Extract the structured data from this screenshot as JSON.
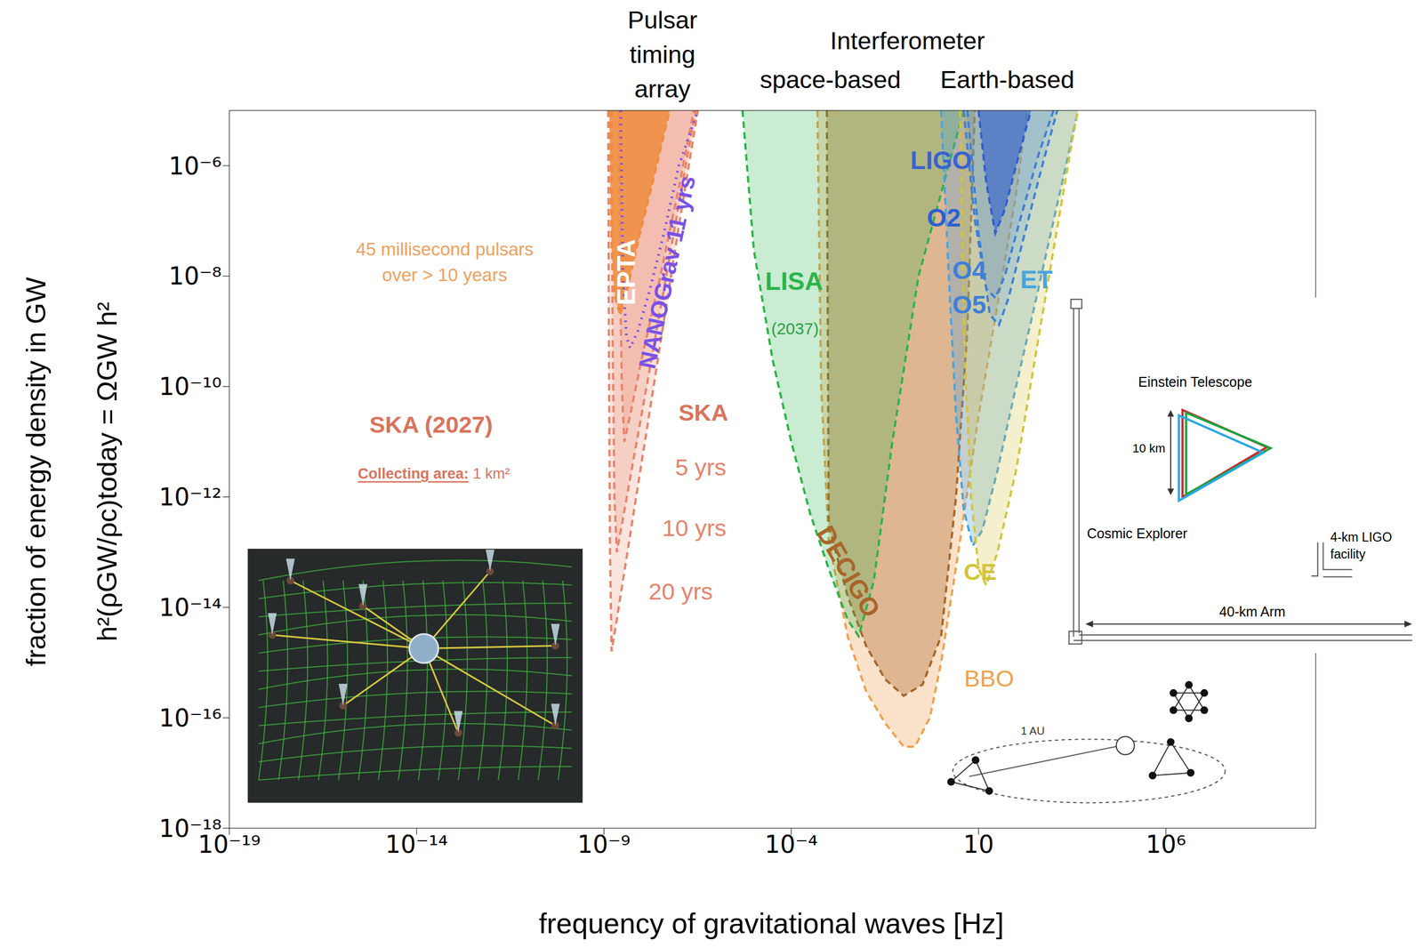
{
  "chart_data": {
    "type": "area",
    "x_label": "frequency of gravitational waves [Hz]",
    "y_label": [
      "fraction of energy density in GW",
      "h²(ρGW/ρc)today = ΩGW h²"
    ],
    "log": true,
    "grid": false,
    "xlim": [
      1e-19,
      10000000000.0
    ],
    "xticks": [
      {
        "value": 1e-19,
        "label": "10⁻¹⁹"
      },
      {
        "value": 1e-14,
        "label": "10⁻¹⁴"
      },
      {
        "value": 1e-09,
        "label": "10⁻⁹"
      },
      {
        "value": 0.0001,
        "label": "10⁻⁴"
      },
      10,
      {
        "value": 1000000,
        "label": "10⁶"
      }
    ],
    "ylim": [
      1e-18,
      1e-05
    ],
    "yticks": [
      {
        "value": 1e-18,
        "label": "10⁻¹⁸"
      },
      {
        "value": 1e-16,
        "label": "10⁻¹⁶"
      },
      {
        "value": 1e-14,
        "label": "10⁻¹⁴"
      },
      {
        "value": 1e-12,
        "label": "10⁻¹²"
      },
      {
        "value": 1e-10,
        "label": "10⁻¹⁰"
      },
      {
        "value": 1e-08,
        "label": "10⁻⁸"
      },
      {
        "value": 1e-06,
        "label": "10⁻⁶"
      }
    ],
    "headers": [
      "Pulsar timing array",
      "Interferometer",
      "space-based",
      "Earth-based"
    ],
    "series": [
      {
        "name": "BBO",
        "type": "area",
        "color": "#f0a050",
        "line_style": "dashed",
        "x": [
          0.0005,
          0.00063,
          0.001,
          0.0032,
          0.01,
          0.032,
          0.1,
          0.2,
          0.5,
          1,
          3.2,
          10,
          32,
          100,
          200
        ],
        "values": [
          1e-05,
          1e-10,
          1.6e-13,
          3e-15,
          3e-16,
          8e-17,
          3e-17,
          3e-17,
          1e-16,
          1e-15,
          1.6e-13,
          3e-11,
          3e-09,
          3e-07,
          1e-05
        ]
      },
      {
        "name": "DECIGO",
        "type": "area",
        "color": "#a8662a",
        "line_style": "dashed",
        "x": [
          0.00089,
          0.001,
          0.0032,
          0.01,
          0.032,
          0.1,
          0.32,
          1,
          2.5,
          5,
          7.9
        ],
        "values": [
          1e-05,
          3e-13,
          1.6e-14,
          2e-15,
          5e-16,
          2.5e-16,
          4e-16,
          3e-15,
          1e-12,
          1e-09,
          1e-05
        ]
      },
      {
        "name": "LISA",
        "type": "area",
        "color": "#2db34a",
        "line_style": "dashed",
        "x": [
          5e-06,
          1e-05,
          3.2e-05,
          0.0001,
          0.00032,
          0.001,
          0.0032,
          0.0063,
          0.016,
          0.05,
          0.25,
          4
        ],
        "values": [
          1e-05,
          3e-08,
          3e-10,
          1e-11,
          5e-13,
          5e-14,
          6e-15,
          3e-15,
          3e-14,
          1e-11,
          1e-08,
          1e-05
        ]
      },
      {
        "name": "ET",
        "type": "area",
        "color": "#4aa3df",
        "line_style": "dashed",
        "x": [
          1,
          1.6,
          2.5,
          4,
          7,
          12.6,
          32,
          100,
          316,
          1000,
          2500,
          4500
        ],
        "values": [
          1e-05,
          1e-08,
          3e-11,
          6e-13,
          1.3e-13,
          2.5e-13,
          3e-12,
          1e-10,
          3e-09,
          1e-07,
          1.6e-06,
          1e-05
        ]
      },
      {
        "name": "CE",
        "type": "area",
        "color": "#d4c43a",
        "line_style": "dashed",
        "x": [
          3.2,
          4,
          6.3,
          10,
          16,
          32,
          100,
          316,
          1000,
          3200,
          4500
        ],
        "values": [
          1e-05,
          1e-09,
          1e-12,
          5e-14,
          2.5e-14,
          1e-13,
          3e-12,
          3e-10,
          3e-08,
          3e-06,
          1e-05
        ]
      },
      {
        "name": "O4",
        "type": "area",
        "color": "#3f7fd6",
        "line_style": "dashed",
        "x": [
          4,
          8,
          16,
          28,
          50,
          126,
          400,
          1000
        ],
        "values": [
          1e-05,
          1e-07,
          6e-09,
          4e-09,
          1e-08,
          1e-07,
          1.6e-06,
          1e-05
        ]
      },
      {
        "name": "O5",
        "type": "area",
        "color": "#3f7fd6",
        "line_style": "dashed",
        "x": [
          5,
          10,
          20,
          35,
          63,
          160,
          500,
          1260
        ],
        "values": [
          1e-05,
          6e-08,
          2e-09,
          1.3e-09,
          4e-09,
          5e-08,
          1e-06,
          1e-05
        ]
      },
      {
        "name": "O2",
        "type": "area",
        "color": "#2f5fcf",
        "line_style": "dashed",
        "x": [
          10,
          16,
          28,
          50,
          100,
          250
        ],
        "values": [
          1e-05,
          5e-07,
          6e-08,
          1.6e-07,
          1e-06,
          1e-05
        ]
      },
      {
        "name": "20 yrs",
        "type": "area",
        "color": "#e8836a",
        "line_style": "dashed",
        "x": [
          1.3e-09,
          1.35e-09,
          1.45e-09,
          1.6e-09,
          2.2e-09,
          3.2e-09,
          1e-08,
          3.2e-08,
          1e-07,
          3.2e-07
        ],
        "values": [
          1e-05,
          1e-09,
          1e-13,
          1.6e-15,
          6e-15,
          3e-14,
          4e-12,
          6e-10,
          8e-08,
          1e-05
        ]
      },
      {
        "name": "10 yrs",
        "type": "area",
        "color": "#e8836a",
        "line_style": "dashed",
        "x": [
          1.6e-09,
          1.7e-09,
          1.9e-09,
          2.2e-09,
          3.2e-09,
          1e-08,
          3.2e-08,
          1e-07,
          2.8e-07
        ],
        "values": [
          1e-05,
          1e-09,
          1e-12,
          1e-13,
          4e-13,
          3e-11,
          2.5e-09,
          2e-07,
          1e-05
        ]
      },
      {
        "name": "5 yrs",
        "type": "area",
        "color": "#e8836a",
        "line_style": "dashed",
        "x": [
          2.5e-09,
          2.7e-09,
          3e-09,
          3.5e-09,
          5e-09,
          1e-08,
          3.2e-08,
          1e-07,
          2.5e-07
        ],
        "values": [
          1e-05,
          1e-08,
          1e-10,
          1e-11,
          3e-11,
          3e-10,
          1e-08,
          4e-07,
          1e-05
        ]
      },
      {
        "name": "EPTA",
        "type": "area",
        "color": "#ef8c3d",
        "line_style": "dashed",
        "x": [
          1.4e-09,
          1.6e-09,
          2e-09,
          2.7e-09,
          4e-09,
          8e-09,
          2e-08,
          5.7e-08
        ],
        "values": [
          1e-05,
          3e-08,
          4e-09,
          2e-09,
          5e-09,
          4e-08,
          5e-07,
          1e-05
        ]
      },
      {
        "name": "NANOGrav 11 yrs",
        "type": "line",
        "color": "#7a52e6",
        "line_style": "dotted",
        "x": [
          2.8e-09,
          3.2e-09,
          4e-09,
          5e-09,
          8e-09,
          1.6e-08,
          4e-08,
          1e-07,
          3.2e-07
        ],
        "values": [
          1e-05,
          1e-08,
          8e-10,
          5e-10,
          1e-09,
          5e-09,
          6e-08,
          1e-06,
          1e-05
        ]
      }
    ],
    "annotations": [
      {
        "text": "45 millisecond pulsars",
        "color": "#f0a060"
      },
      {
        "text": "over > 10 years",
        "color": "#f0a060"
      },
      {
        "text": "SKA (2027)",
        "color": "#d9745c"
      },
      {
        "text": "Collecting area:",
        "color": "#d9745c"
      },
      {
        "text": "1 km²",
        "color": "#d9745c"
      },
      {
        "text": "SKA",
        "color": "#d9745c"
      },
      {
        "text": "LIGO",
        "color": "#3a62d0"
      },
      {
        "text": "(2037)",
        "color": "#2a9e42"
      }
    ],
    "insets": {
      "detectors": [
        "Einstein Telescope",
        "10 km",
        "Cosmic Explorer",
        "4-km LIGO facility",
        "40-km Arm"
      ],
      "bbo": [
        "1 AU"
      ]
    }
  }
}
